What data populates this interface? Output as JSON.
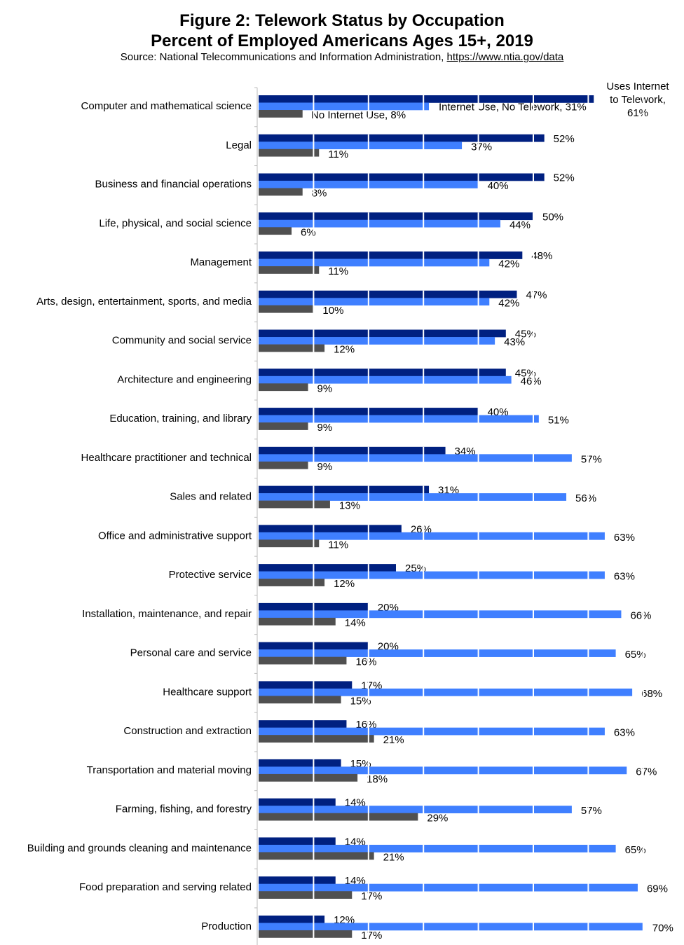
{
  "chart_data": {
    "type": "bar",
    "orientation": "horizontal",
    "title": "Figure 2: Telework Status by Occupation",
    "subtitle": "Percent of Employed Americans Ages 15+, 2019",
    "source_prefix": "Source: National Telecommunications and Information Administration,",
    "source_link": "https://www.ntia.gov/data",
    "xlim": [
      0,
      70
    ],
    "unit": "%",
    "grid": "vertical every 10%",
    "categories": [
      "Computer and mathematical science",
      "Legal",
      "Business and financial operations",
      "Life, physical, and social science",
      "Management",
      "Arts, design, entertainment, sports, and media",
      "Community and social service",
      "Architecture and engineering",
      "Education, training, and library",
      "Healthcare practitioner and technical",
      "Sales and related",
      "Office and administrative support",
      "Protective service",
      "Installation, maintenance, and repair",
      "Personal care and service",
      "Healthcare support",
      "Construction and extraction",
      "Transportation and material moving",
      "Farming, fishing, and forestry",
      "Building and grounds cleaning and maintenance",
      "Food preparation and serving related",
      "Production"
    ],
    "series": [
      {
        "name": "Uses Internet to Telework",
        "label_first": [
          "Uses Internet",
          "to Telework,",
          "61%"
        ],
        "color": "#002080",
        "values": [
          61,
          52,
          52,
          50,
          48,
          47,
          45,
          45,
          40,
          34,
          31,
          26,
          25,
          20,
          20,
          17,
          16,
          15,
          14,
          14,
          14,
          12
        ]
      },
      {
        "name": "Internet Use, No Telework",
        "label_first": "Internet Use, No Telework, 31%",
        "color": "#3f7fff",
        "values": [
          31,
          37,
          40,
          44,
          42,
          42,
          43,
          46,
          51,
          57,
          56,
          63,
          63,
          66,
          65,
          68,
          63,
          67,
          57,
          65,
          69,
          70
        ]
      },
      {
        "name": "No Internet Use",
        "label_first": "No Internet Use, 8%",
        "color": "#505050",
        "values": [
          8,
          11,
          8,
          6,
          11,
          10,
          12,
          9,
          9,
          9,
          13,
          11,
          12,
          14,
          16,
          15,
          21,
          18,
          29,
          21,
          17,
          17
        ]
      }
    ]
  }
}
